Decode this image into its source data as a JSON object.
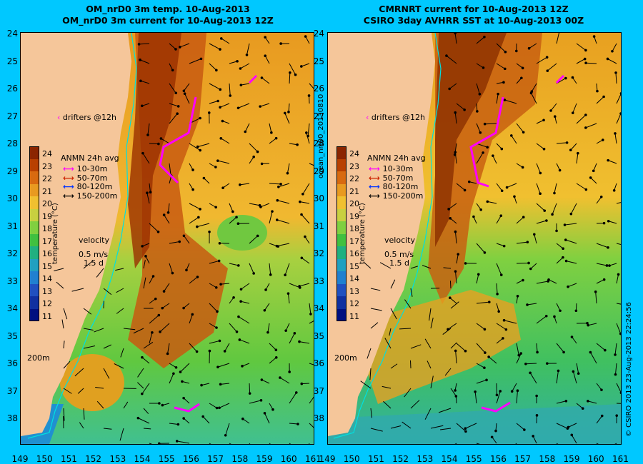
{
  "left_panel": {
    "title_line1": "OM_nrD0 3m temp. 10-Aug-2013",
    "title_line2": "OM_nrD0 3m current for 10-Aug-2013 12Z"
  },
  "right_panel": {
    "title_line1": "CMRNRT current for 10-Aug-2013 12Z",
    "title_line2": "CSIRO 3day AVHRR SST at 10-Aug-2013 00Z"
  },
  "y_ticks": [
    "24",
    "25",
    "26",
    "27",
    "28",
    "29",
    "30",
    "31",
    "32",
    "33",
    "34",
    "35",
    "36",
    "37",
    "38"
  ],
  "x_ticks": [
    "149",
    "150",
    "151",
    "152",
    "153",
    "154",
    "155",
    "156",
    "157",
    "158",
    "159",
    "160",
    "161"
  ],
  "legend": {
    "drifters": "drifters @12h",
    "anmn_title": "ANMN 24h avg",
    "depths": [
      {
        "label": "10-30m",
        "color": "#ff00ff"
      },
      {
        "label": "50-70m",
        "color": "#cc2200"
      },
      {
        "label": "80-120m",
        "color": "#0033ff"
      },
      {
        "label": "150-200m",
        "color": "#000000"
      }
    ],
    "velocity_title": "velocity",
    "velocity_speed": "0.5 m/s",
    "velocity_time": "1.5 d",
    "isobath": "200m"
  },
  "colorbar": {
    "label": "temperature (°C)",
    "ticks": [
      "24",
      "23",
      "22",
      "21",
      "20",
      "19",
      "18",
      "17",
      "16",
      "15",
      "14",
      "13",
      "12",
      "11"
    ],
    "colors": [
      "#8b2500",
      "#b84000",
      "#d86a10",
      "#e89a20",
      "#f0c030",
      "#c8d040",
      "#80d040",
      "#40c040",
      "#20b080",
      "#20a0c0",
      "#2080d0",
      "#2050c0",
      "#1030a0",
      "#001080"
    ]
  },
  "side_label": "ocean_nrt00_20130810",
  "copyright": "© CSIRO 2013   23-Aug-2013 22:24:56",
  "colors": {
    "background": "#00c8ff",
    "land": "#f5c69a",
    "drifter": "#ff00ff"
  }
}
